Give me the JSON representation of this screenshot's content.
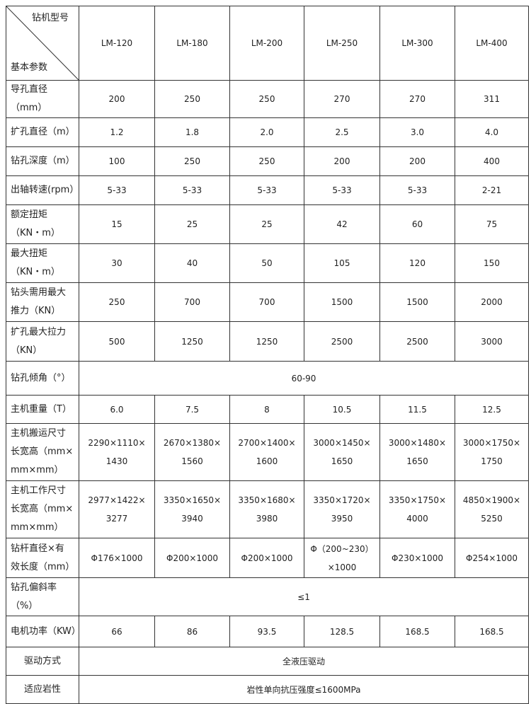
{
  "header": {
    "corner_top": "钻机型号",
    "corner_bottom": "基本参数",
    "models": [
      "LM-120",
      "LM-180",
      "LM-200",
      "LM-250",
      "LM-300",
      "LM-400"
    ]
  },
  "rows": [
    {
      "label": "导孔直径（mm）",
      "values": [
        "200",
        "250",
        "250",
        "270",
        "270",
        "311"
      ]
    },
    {
      "label": "扩孔直径（m）",
      "values": [
        "1.2",
        "1.8",
        "2.0",
        "2.5",
        "3.0",
        "4.0"
      ]
    },
    {
      "label": "钻孔深度（m）",
      "values": [
        "100",
        "250",
        "250",
        "200",
        "200",
        "400"
      ]
    },
    {
      "label": "出轴转速(rpm）",
      "values": [
        "5-33",
        "5-33",
        "5-33",
        "5-33",
        "5-33",
        "2-21"
      ]
    },
    {
      "label": "额定扭矩\n（KN・m）",
      "values": [
        "15",
        "25",
        "25",
        "42",
        "60",
        "75"
      ]
    },
    {
      "label": "最大扭矩\n（KN・m）",
      "values": [
        "30",
        "40",
        "50",
        "105",
        "120",
        "150"
      ]
    },
    {
      "label": "钻头需用最大\n推力（KN）",
      "values": [
        "250",
        "700",
        "700",
        "1500",
        "1500",
        "2000"
      ]
    },
    {
      "label": "扩孔最大拉力\n（KN）",
      "values": [
        "500",
        "1250",
        "1250",
        "2500",
        "2500",
        "3000"
      ]
    },
    {
      "label": "钻孔倾角（°）",
      "merged": "60-90"
    },
    {
      "label": "主机重量（T）",
      "values": [
        "6.0",
        "7.5",
        "8",
        "10.5",
        "11.5",
        "12.5"
      ]
    },
    {
      "label": "主机搬运尺寸\n长宽高（mm×\nmm×mm）",
      "values": [
        "2290×1110×\n1430",
        "2670×1380×\n1560",
        "2700×1400×\n1600",
        "3000×1450×\n1650",
        "3000×1480×\n1650",
        "3000×1750×\n1750"
      ]
    },
    {
      "label": "主机工作尺寸\n长宽高（mm×\nmm×mm）",
      "values": [
        "2977×1422×\n3277",
        "3350×1650×\n3940",
        "3350×1680×\n3980",
        "3350×1720×\n3950",
        "3350×1750×\n4000",
        "4850×1900×\n5250"
      ]
    },
    {
      "label": "钻杆直径×有\n效长度（mm）",
      "values": [
        "Φ176×1000",
        "Φ200×1000",
        "Φ200×1000",
        "Φ（200~230）\n×1000",
        "Φ230×1000",
        "Φ254×1000"
      ]
    },
    {
      "label": "钻孔偏斜率\n（%）",
      "merged": "≤1"
    },
    {
      "label": "电机功率（KW）",
      "values": [
        "66",
        "86",
        "93.5",
        "128.5",
        "168.5",
        "168.5"
      ]
    },
    {
      "label": "驱动方式",
      "merged": "全液压驱动"
    },
    {
      "label": "适应岩性",
      "merged": "岩性单向抗压强度≤1600MPa"
    }
  ]
}
